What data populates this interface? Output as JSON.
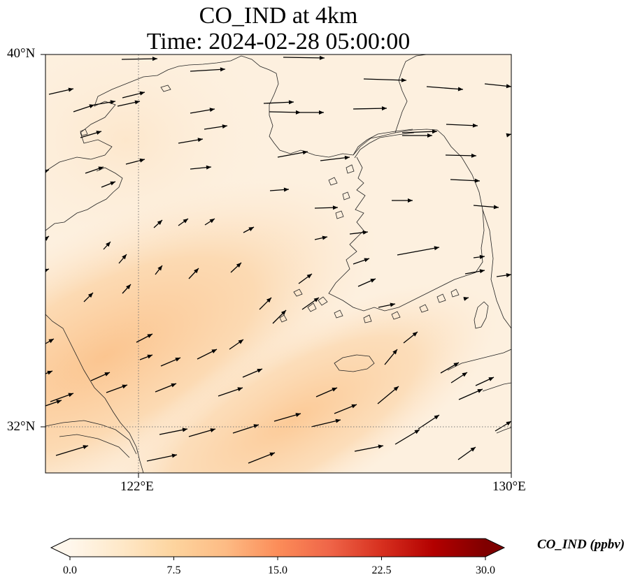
{
  "title": {
    "line1": "CO_IND at 4km",
    "line2": "Time: 2024-02-28 05:00:00"
  },
  "map": {
    "lon_range": [
      120,
      130
    ],
    "lat_range": [
      31,
      40
    ],
    "lon_ticks": [
      {
        "value": 122,
        "label": "122°E"
      },
      {
        "value": 130,
        "label": "130°E"
      }
    ],
    "lat_ticks": [
      {
        "value": 40,
        "label": "40°N"
      },
      {
        "value": 32,
        "label": "32°N"
      }
    ],
    "gridlines": "dotted",
    "field": "CO_IND",
    "background_color": "#fdf0df",
    "plume_color": "#fbc894",
    "coastline_color": "#222222",
    "arrow_color": "#000000"
  },
  "colorbar": {
    "label": "CO_IND (ppbv)",
    "min": 0,
    "max": 30,
    "ticks": [
      "0.0",
      "7.5",
      "15.0",
      "22.5",
      "30.0"
    ],
    "extend": "both",
    "colormap": "OrRd",
    "colors": [
      "#fff7ec",
      "#fee8c8",
      "#fdd49e",
      "#fdbb84",
      "#fc8d59",
      "#ef6548",
      "#d7301f",
      "#b30000",
      "#7f0000"
    ]
  }
}
